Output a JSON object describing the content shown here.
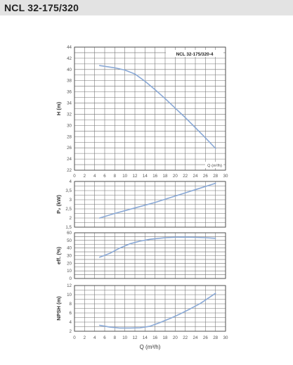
{
  "header": {
    "title": "NCL 32-175/320"
  },
  "colors": {
    "curve": "#8aa9d6",
    "grid": "#707070",
    "frame": "#444444",
    "header_bg": "#e3e3e3"
  },
  "chart_data": [
    {
      "type": "line",
      "ylabel": "H (m)",
      "model_label": "NCL 32-175/320-4",
      "x_unit_label": "Q (m³/h)",
      "xlim": [
        0,
        30
      ],
      "ylim": [
        22,
        44
      ],
      "x_ticks": [
        "0",
        "2",
        "4",
        "6",
        "8",
        "10",
        "12",
        "14",
        "16",
        "18",
        "20",
        "22",
        "24",
        "26",
        "28",
        "30"
      ],
      "y_ticks": [
        "22",
        "24",
        "26",
        "28",
        "30",
        "32",
        "34",
        "36",
        "38",
        "40",
        "42",
        "44"
      ],
      "series": [
        {
          "x": [
            5,
            8,
            10,
            12,
            14,
            16,
            18,
            20,
            22,
            24,
            26,
            28
          ],
          "y": [
            40.7,
            40.3,
            39.9,
            39.2,
            37.9,
            36.4,
            34.8,
            33.1,
            31.4,
            29.6,
            27.8,
            25.9
          ]
        }
      ]
    },
    {
      "type": "line",
      "ylabel": "P₂ (kW)",
      "xlim": [
        0,
        30
      ],
      "ylim": [
        1.5,
        4
      ],
      "y_ticks": [
        "1,5",
        "2",
        "2,5",
        "3",
        "3,5",
        "4"
      ],
      "series": [
        {
          "x": [
            5,
            8,
            12,
            16,
            20,
            24,
            28
          ],
          "y": [
            2.0,
            2.25,
            2.55,
            2.85,
            3.2,
            3.55,
            3.9
          ]
        }
      ]
    },
    {
      "type": "line",
      "ylabel": "eff. (%)",
      "xlim": [
        0,
        30
      ],
      "ylim": [
        0,
        60
      ],
      "y_ticks": [
        "0",
        "10",
        "20",
        "30",
        "40",
        "50",
        "60"
      ],
      "series": [
        {
          "x": [
            5,
            7,
            9,
            11,
            13,
            15,
            18,
            20,
            22,
            24,
            26,
            28
          ],
          "y": [
            28,
            33,
            40,
            45.5,
            49,
            51.5,
            53.5,
            54.2,
            54.3,
            54.0,
            53.5,
            52.8
          ]
        }
      ]
    },
    {
      "type": "line",
      "ylabel": "NPSH (m)",
      "xlabel": "Q (m³/h)",
      "xlim": [
        0,
        30
      ],
      "ylim": [
        2,
        12
      ],
      "x_ticks": [
        "0",
        "2",
        "4",
        "6",
        "8",
        "10",
        "12",
        "14",
        "16",
        "18",
        "20",
        "22",
        "24",
        "26",
        "28",
        "30"
      ],
      "y_ticks": [
        "2",
        "4",
        "6",
        "8",
        "10",
        "12"
      ],
      "series": [
        {
          "x": [
            5,
            7,
            9,
            11,
            13,
            15,
            17,
            19,
            21,
            23,
            25,
            28
          ],
          "y": [
            3.3,
            2.9,
            2.7,
            2.7,
            2.75,
            3.1,
            3.9,
            4.8,
            5.8,
            6.9,
            8.1,
            10.3
          ]
        }
      ]
    }
  ]
}
